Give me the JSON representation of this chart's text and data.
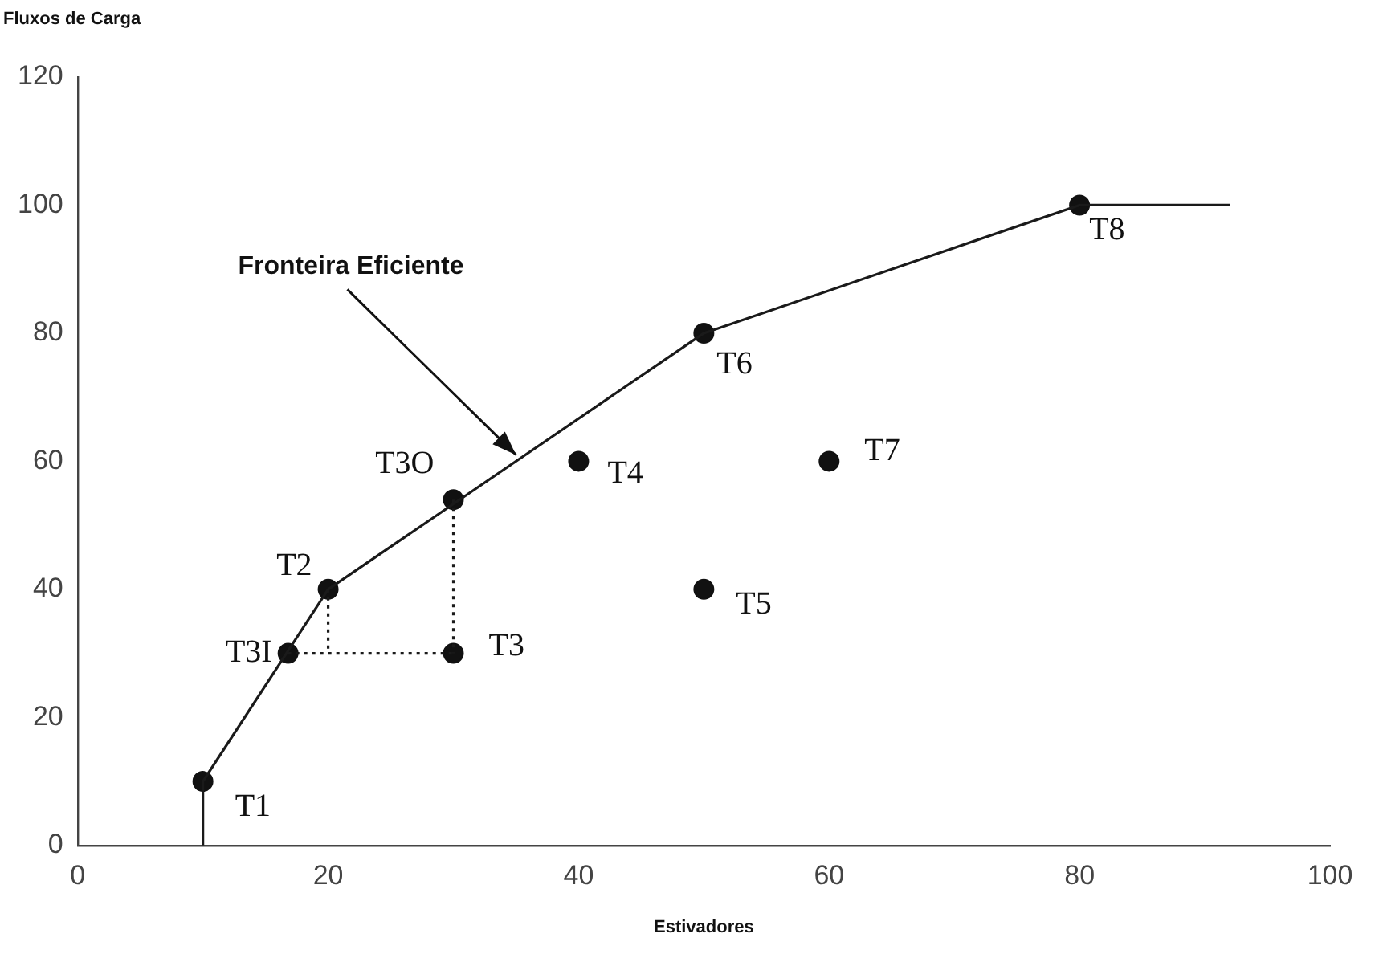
{
  "chart_data": {
    "type": "scatter",
    "xlabel": "Estivadores",
    "ylabel": "Fluxos de Carga",
    "xlim": [
      0,
      100
    ],
    "xticks": [
      0,
      20,
      40,
      60,
      80,
      100
    ],
    "ylim": [
      0,
      120
    ],
    "yticks": [
      0,
      20,
      40,
      60,
      80,
      100,
      120
    ],
    "grid": false,
    "legend": false,
    "marker": "circle",
    "series": [
      {
        "type": "line",
        "color": "#1a1a1a",
        "line_style": "solid",
        "marker": "none",
        "x": [
          10,
          10,
          20,
          50,
          80,
          92
        ],
        "values": [
          0,
          10,
          40,
          80,
          100,
          100
        ]
      },
      {
        "type": "line",
        "color": "#1a1a1a",
        "line_style": "dotted",
        "marker": "none",
        "x": [
          16.8,
          30
        ],
        "values": [
          30,
          30
        ]
      },
      {
        "type": "line",
        "color": "#1a1a1a",
        "line_style": "dotted",
        "marker": "none",
        "x": [
          20,
          20
        ],
        "values": [
          40,
          30
        ]
      },
      {
        "type": "line",
        "color": "#1a1a1a",
        "line_style": "dotted",
        "marker": "none",
        "x": [
          30,
          30
        ],
        "values": [
          54,
          30
        ]
      },
      {
        "color": "#111111",
        "x": [
          10,
          20,
          16.8,
          30,
          30,
          40,
          50,
          50,
          60,
          80
        ],
        "values": [
          10,
          40,
          30,
          30,
          54,
          60,
          40,
          80,
          60,
          100
        ]
      }
    ],
    "annotations": [
      {
        "text": "T1",
        "x": 10,
        "y": 10
      },
      {
        "text": "T2",
        "x": 20,
        "y": 40
      },
      {
        "text": "T3I",
        "x": 16.8,
        "y": 30
      },
      {
        "text": "T3",
        "x": 30,
        "y": 30
      },
      {
        "text": "T3O",
        "x": 30,
        "y": 54
      },
      {
        "text": "T4",
        "x": 40,
        "y": 60
      },
      {
        "text": "T5",
        "x": 50,
        "y": 40
      },
      {
        "text": "T6",
        "x": 50,
        "y": 80
      },
      {
        "text": "T7",
        "x": 60,
        "y": 60
      },
      {
        "text": "T8",
        "x": 80,
        "y": 100
      },
      {
        "text": "Fronteira Eficiente",
        "x": 35,
        "y": 61
      }
    ]
  }
}
